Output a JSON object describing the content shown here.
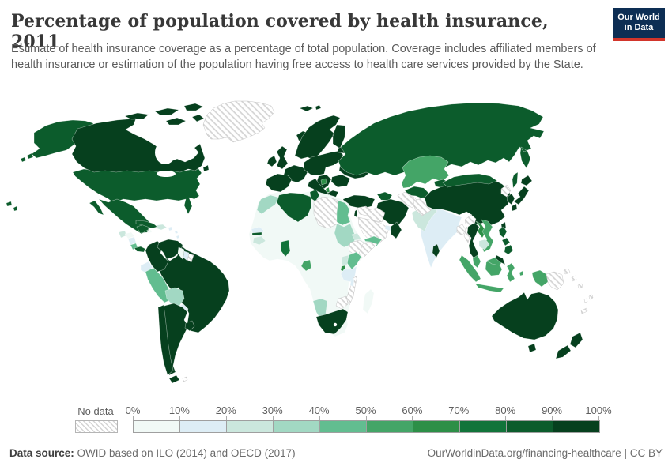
{
  "header": {
    "title": "Percentage of population covered by health insurance, 2011",
    "subtitle": "Estimate of health insurance coverage as a percentage of total population. Coverage includes affiliated members of health insurance or estimation of the population having free access to health care services provided by the State.",
    "logo_line1": "Our World",
    "logo_line2": "in Data",
    "logo_bg": "#0d2e54",
    "logo_accent": "#d2352b"
  },
  "legend": {
    "no_data_label": "No data",
    "tick_labels": [
      "0%",
      "10%",
      "20%",
      "30%",
      "40%",
      "50%",
      "60%",
      "70%",
      "80%",
      "90%",
      "100%"
    ]
  },
  "palette": {
    "scale": [
      "#f1f9f6",
      "#ddedf5",
      "#cbe7dd",
      "#a2d8c3",
      "#62bd90",
      "#44a567",
      "#2d8f47",
      "#11743a",
      "#0c5c2c",
      "#06401e"
    ],
    "hatch_line": "#d4d4d4",
    "hatch_border": "#c6c6c6",
    "country_border": "#ffffff"
  },
  "footer": {
    "source_label": "Data source:",
    "source_text": " OWID based on ILO (2014) and OECD (2017)",
    "right_text": "OurWorldinData.org/financing-healthcare | CC BY"
  },
  "chart_data": {
    "type": "choropleth_map",
    "title": "Percentage of population covered by health insurance, 2011",
    "unit": "%",
    "legend_position": "bottom",
    "scale": {
      "buckets": [
        "0-10%",
        "10-20%",
        "20-30%",
        "30-40%",
        "40-50%",
        "50-60%",
        "60-70%",
        "70-80%",
        "80-90%",
        "90-100%"
      ],
      "colors": [
        "#f1f9f6",
        "#ddedf5",
        "#cbe7dd",
        "#a2d8c3",
        "#62bd90",
        "#44a567",
        "#2d8f47",
        "#11743a",
        "#0c5c2c",
        "#06401e"
      ],
      "no_data": "hatched"
    },
    "regions": [
      {
        "name": "Canada",
        "bucket": "90-100%"
      },
      {
        "name": "United States",
        "bucket": "80-90%"
      },
      {
        "name": "Mexico",
        "bucket": "80-90%"
      },
      {
        "name": "Greenland",
        "bucket": "No data"
      },
      {
        "name": "Cuba",
        "bucket": "80-90%"
      },
      {
        "name": "Guatemala",
        "bucket": "20-30%"
      },
      {
        "name": "Honduras",
        "bucket": "0-10%"
      },
      {
        "name": "Nicaragua",
        "bucket": "10-20%"
      },
      {
        "name": "Costa Rica",
        "bucket": "40-50%"
      },
      {
        "name": "Panama",
        "bucket": "80-90%"
      },
      {
        "name": "Dominican Republic",
        "bucket": "20-30%"
      },
      {
        "name": "Jamaica",
        "bucket": "0-10%"
      },
      {
        "name": "Colombia",
        "bucket": "90-100%"
      },
      {
        "name": "Venezuela",
        "bucket": "90-100%"
      },
      {
        "name": "Guyana",
        "bucket": "0-10%"
      },
      {
        "name": "Suriname",
        "bucket": "10-20%"
      },
      {
        "name": "French Guiana",
        "bucket": "No data"
      },
      {
        "name": "Ecuador",
        "bucket": "10-20%"
      },
      {
        "name": "Peru",
        "bucket": "40-50%"
      },
      {
        "name": "Bolivia",
        "bucket": "30-40%"
      },
      {
        "name": "Paraguay",
        "bucket": "10-20%"
      },
      {
        "name": "Brazil",
        "bucket": "90-100%"
      },
      {
        "name": "Chile",
        "bucket": "90-100%"
      },
      {
        "name": "Argentina",
        "bucket": "90-100%"
      },
      {
        "name": "Uruguay",
        "bucket": "90-100%"
      },
      {
        "name": "Iceland",
        "bucket": "90-100%"
      },
      {
        "name": "United Kingdom",
        "bucket": "90-100%"
      },
      {
        "name": "Ireland",
        "bucket": "90-100%"
      },
      {
        "name": "France",
        "bucket": "90-100%"
      },
      {
        "name": "Spain",
        "bucket": "90-100%"
      },
      {
        "name": "Portugal",
        "bucket": "90-100%"
      },
      {
        "name": "Germany",
        "bucket": "90-100%"
      },
      {
        "name": "Italy",
        "bucket": "90-100%"
      },
      {
        "name": "Norway",
        "bucket": "90-100%"
      },
      {
        "name": "Sweden",
        "bucket": "90-100%"
      },
      {
        "name": "Finland",
        "bucket": "90-100%"
      },
      {
        "name": "Denmark",
        "bucket": "90-100%"
      },
      {
        "name": "Poland",
        "bucket": "90-100%"
      },
      {
        "name": "Ukraine",
        "bucket": "90-100%"
      },
      {
        "name": "Belarus",
        "bucket": "60-70%"
      },
      {
        "name": "Bosnia and Herzegovina",
        "bucket": "60-70%"
      },
      {
        "name": "Albania",
        "bucket": "60-70%"
      },
      {
        "name": "Greece",
        "bucket": "90-100%"
      },
      {
        "name": "Turkey",
        "bucket": "90-100%"
      },
      {
        "name": "Russia",
        "bucket": "80-90%"
      },
      {
        "name": "Azerbaijan",
        "bucket": "80-90%"
      },
      {
        "name": "Kazakhstan",
        "bucket": "50-60%"
      },
      {
        "name": "Uzbekistan",
        "bucket": "80-90%"
      },
      {
        "name": "Turkmenistan",
        "bucket": "No data"
      },
      {
        "name": "Kyrgyzstan",
        "bucket": "80-90%"
      },
      {
        "name": "Tajikistan",
        "bucket": "20-30%"
      },
      {
        "name": "Afghanistan",
        "bucket": "No data"
      },
      {
        "name": "Pakistan",
        "bucket": "20-30%"
      },
      {
        "name": "India",
        "bucket": "10-20%"
      },
      {
        "name": "Nepal",
        "bucket": "10-20%"
      },
      {
        "name": "Bangladesh",
        "bucket": "No data"
      },
      {
        "name": "Sri Lanka",
        "bucket": "90-100%"
      },
      {
        "name": "China",
        "bucket": "90-100%"
      },
      {
        "name": "Mongolia",
        "bucket": "80-90%"
      },
      {
        "name": "North Korea",
        "bucket": "No data"
      },
      {
        "name": "South Korea",
        "bucket": "90-100%"
      },
      {
        "name": "Japan",
        "bucket": "90-100%"
      },
      {
        "name": "Taiwan",
        "bucket": "90-100%"
      },
      {
        "name": "Myanmar",
        "bucket": "No data"
      },
      {
        "name": "Thailand",
        "bucket": "90-100%"
      },
      {
        "name": "Laos",
        "bucket": "60-70%"
      },
      {
        "name": "Vietnam",
        "bucket": "50-60%"
      },
      {
        "name": "Cambodia",
        "bucket": "20-30%"
      },
      {
        "name": "Malaysia",
        "bucket": "50-60%"
      },
      {
        "name": "Brunei",
        "bucket": "90-100%"
      },
      {
        "name": "Indonesia",
        "bucket": "50-60%"
      },
      {
        "name": "Philippines",
        "bucket": "80-90%"
      },
      {
        "name": "Papua New Guinea",
        "bucket": "No data"
      },
      {
        "name": "Australia",
        "bucket": "90-100%"
      },
      {
        "name": "New Zealand",
        "bucket": "90-100%"
      },
      {
        "name": "Fiji",
        "bucket": "No data"
      },
      {
        "name": "Solomon Islands",
        "bucket": "No data"
      },
      {
        "name": "New Caledonia",
        "bucket": "No data"
      },
      {
        "name": "Iran",
        "bucket": "90-100%"
      },
      {
        "name": "Iraq",
        "bucket": "No data"
      },
      {
        "name": "Syria",
        "bucket": "No data"
      },
      {
        "name": "Israel",
        "bucket": "90-100%"
      },
      {
        "name": "Saudi Arabia",
        "bucket": "No data"
      },
      {
        "name": "Yemen",
        "bucket": "40-50%"
      },
      {
        "name": "Oman",
        "bucket": "90-100%"
      },
      {
        "name": "United Arab Emirates",
        "bucket": "10-20%"
      },
      {
        "name": "Morocco",
        "bucket": "30-40%"
      },
      {
        "name": "Algeria",
        "bucket": "80-90%"
      },
      {
        "name": "Tunisia",
        "bucket": "80-90%"
      },
      {
        "name": "Libya",
        "bucket": "No data"
      },
      {
        "name": "Egypt",
        "bucket": "40-50%"
      },
      {
        "name": "Sudan",
        "bucket": "30-40%"
      },
      {
        "name": "Mauritania",
        "bucket": "0-10%"
      },
      {
        "name": "Mali",
        "bucket": "0-10%"
      },
      {
        "name": "Niger",
        "bucket": "0-10%"
      },
      {
        "name": "Chad",
        "bucket": "0-10%"
      },
      {
        "name": "Nigeria",
        "bucket": "0-10%"
      },
      {
        "name": "Senegal",
        "bucket": "10-20%"
      },
      {
        "name": "Gambia",
        "bucket": "80-90%"
      },
      {
        "name": "Guinea",
        "bucket": "20-30%"
      },
      {
        "name": "Ghana",
        "bucket": "70-80%"
      },
      {
        "name": "Ivory Coast",
        "bucket": "0-10%"
      },
      {
        "name": "Gabon",
        "bucket": "50-60%"
      },
      {
        "name": "Democratic Republic of Congo",
        "bucket": "0-10%"
      },
      {
        "name": "Ethiopia",
        "bucket": "No data"
      },
      {
        "name": "Somalia",
        "bucket": "No data"
      },
      {
        "name": "Eritrea",
        "bucket": "20-30%"
      },
      {
        "name": "Kenya",
        "bucket": "40-50%"
      },
      {
        "name": "Uganda",
        "bucket": "20-30%"
      },
      {
        "name": "Rwanda",
        "bucket": "60-70%"
      },
      {
        "name": "Tanzania",
        "bucket": "10-20%"
      },
      {
        "name": "Malawi",
        "bucket": "10-20%"
      },
      {
        "name": "Mozambique",
        "bucket": "No data"
      },
      {
        "name": "Zimbabwe",
        "bucket": "No data"
      },
      {
        "name": "Zambia",
        "bucket": "0-10%"
      },
      {
        "name": "Angola",
        "bucket": "0-10%"
      },
      {
        "name": "Namibia",
        "bucket": "30-40%"
      },
      {
        "name": "Botswana",
        "bucket": "0-10%"
      },
      {
        "name": "South Africa",
        "bucket": "90-100%"
      },
      {
        "name": "Madagascar",
        "bucket": "0-10%"
      }
    ]
  }
}
